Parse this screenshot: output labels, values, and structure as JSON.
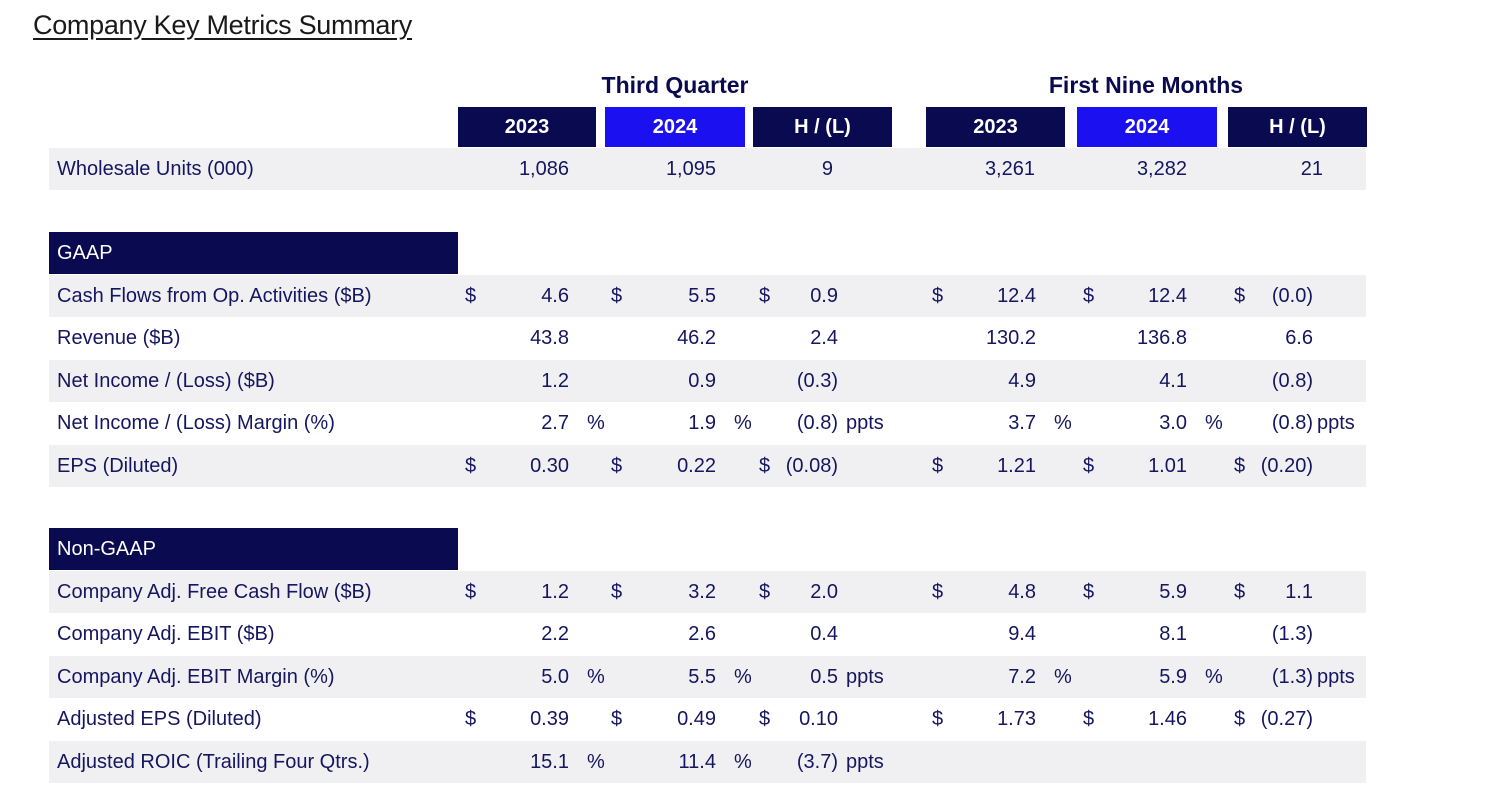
{
  "title": "Company Key Metrics Summary",
  "groups": {
    "third_quarter": "Third Quarter",
    "first_nine_months": "First Nine Months"
  },
  "columns": [
    "2023",
    "2024",
    "H / (L)",
    "2023",
    "2024",
    "H / (L)"
  ],
  "wholesale": {
    "label": "Wholesale Units (000)",
    "values": [
      "1,086",
      "1,095",
      "9",
      "3,261",
      "3,282",
      "21"
    ]
  },
  "gaap": {
    "heading": "GAAP",
    "rows": [
      {
        "label": "Cash Flows from Op. Activities ($B)",
        "cur": [
          "$",
          "$",
          "$",
          "$",
          "$",
          "$"
        ],
        "values": [
          "4.6",
          "5.5",
          "0.9",
          "12.4",
          "12.4",
          "(0.0)"
        ],
        "suffix": [
          "",
          "",
          "",
          "",
          "",
          ""
        ]
      },
      {
        "label": "Revenue ($B)",
        "cur": [
          "",
          "",
          "",
          "",
          "",
          ""
        ],
        "values": [
          "43.8",
          "46.2",
          "2.4",
          "130.2",
          "136.8",
          "6.6"
        ],
        "suffix": [
          "",
          "",
          "",
          "",
          "",
          ""
        ]
      },
      {
        "label": "Net Income / (Loss) ($B)",
        "cur": [
          "",
          "",
          "",
          "",
          "",
          ""
        ],
        "values": [
          "1.2",
          "0.9",
          "(0.3)",
          "4.9",
          "4.1",
          "(0.8)"
        ],
        "suffix": [
          "",
          "",
          "",
          "",
          "",
          ""
        ]
      },
      {
        "label": "Net Income / (Loss) Margin (%)",
        "cur": [
          "",
          "",
          "",
          "",
          "",
          ""
        ],
        "values": [
          "2.7",
          "1.9",
          "(0.8)",
          "3.7",
          "3.0",
          "(0.8)"
        ],
        "suffix": [
          "%",
          "%",
          "ppts",
          "%",
          "%",
          "ppts"
        ]
      },
      {
        "label": "EPS (Diluted)",
        "cur": [
          "$",
          "$",
          "$",
          "$",
          "$",
          "$"
        ],
        "values": [
          "0.30",
          "0.22",
          "(0.08)",
          "1.21",
          "1.01",
          "(0.20)"
        ],
        "suffix": [
          "",
          "",
          "",
          "",
          "",
          ""
        ]
      }
    ]
  },
  "nongaap": {
    "heading": "Non-GAAP",
    "rows": [
      {
        "label": "Company Adj. Free Cash Flow ($B)",
        "cur": [
          "$",
          "$",
          "$",
          "$",
          "$",
          "$"
        ],
        "values": [
          "1.2",
          "3.2",
          "2.0",
          "4.8",
          "5.9",
          "1.1"
        ],
        "suffix": [
          "",
          "",
          "",
          "",
          "",
          ""
        ]
      },
      {
        "label": "Company Adj. EBIT ($B)",
        "cur": [
          "",
          "",
          "",
          "",
          "",
          ""
        ],
        "values": [
          "2.2",
          "2.6",
          "0.4",
          "9.4",
          "8.1",
          "(1.3)"
        ],
        "suffix": [
          "",
          "",
          "",
          "",
          "",
          ""
        ]
      },
      {
        "label": "Company Adj. EBIT Margin (%)",
        "cur": [
          "",
          "",
          "",
          "",
          "",
          ""
        ],
        "values": [
          "5.0",
          "5.5",
          "0.5",
          "7.2",
          "5.9",
          "(1.3)"
        ],
        "suffix": [
          "%",
          "%",
          "ppts",
          "%",
          "%",
          "ppts"
        ]
      },
      {
        "label": "Adjusted EPS (Diluted)",
        "cur": [
          "$",
          "$",
          "$",
          "$",
          "$",
          "$"
        ],
        "values": [
          "0.39",
          "0.49",
          "0.10",
          "1.73",
          "1.46",
          "(0.27)"
        ],
        "suffix": [
          "",
          "",
          "",
          "",
          "",
          ""
        ]
      },
      {
        "label": "Adjusted ROIC (Trailing Four Qtrs.)",
        "cur": [
          "",
          "",
          "",
          "",
          "",
          ""
        ],
        "values": [
          "15.1",
          "11.4",
          "(3.7)",
          "",
          "",
          ""
        ],
        "suffix": [
          "%",
          "%",
          "ppts",
          "",
          "",
          ""
        ]
      }
    ]
  }
}
